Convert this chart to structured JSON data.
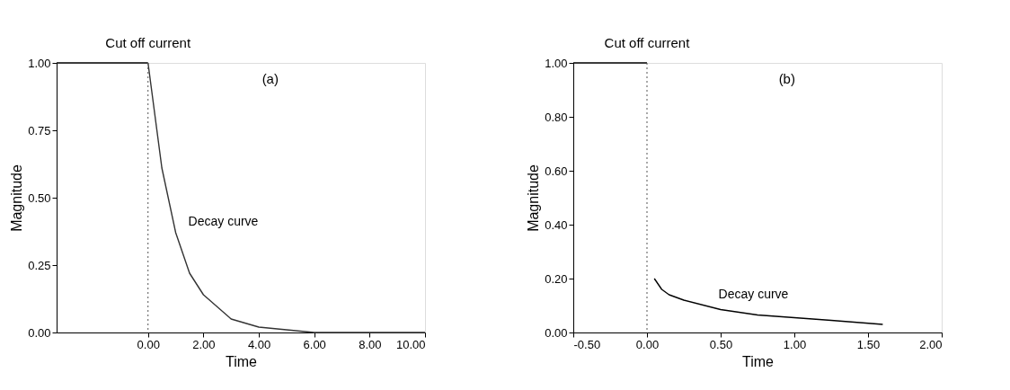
{
  "chart_data": [
    {
      "type": "line",
      "xlabel": "Time",
      "ylabel": "Magnitude",
      "xlim": [
        -3.3,
        10
      ],
      "ylim": [
        0,
        1
      ],
      "xticks": [
        {
          "value": 0,
          "label": "0.00"
        },
        {
          "value": 2,
          "label": "2.00"
        },
        {
          "value": 4,
          "label": "4.00"
        },
        {
          "value": 6,
          "label": "6.00"
        },
        {
          "value": 8,
          "label": "8.00"
        },
        {
          "value": 10,
          "label": "10.00"
        }
      ],
      "yticks": [
        {
          "value": 0,
          "label": "0.00"
        },
        {
          "value": 0.25,
          "label": "0.25"
        },
        {
          "value": 0.5,
          "label": "0.50"
        },
        {
          "value": 0.75,
          "label": "0.75"
        },
        {
          "value": 1,
          "label": "1.00"
        }
      ],
      "series": [
        {
          "color": "#000000",
          "x": [
            -3.3,
            0
          ],
          "values": [
            1,
            1
          ]
        },
        {
          "color": "#333333",
          "x": [
            0,
            0.5,
            1,
            1.5,
            2,
            3,
            4,
            5,
            6,
            8,
            10
          ],
          "values": [
            1,
            0.61,
            0.37,
            0.22,
            0.14,
            0.05,
            0.02,
            0.01,
            0,
            0,
            0
          ]
        }
      ],
      "ref_lines": [
        {
          "axis": "x",
          "value": 0,
          "line_style": "dotted"
        }
      ],
      "annotations": [
        "(a)",
        {
          "text": "Cut off current",
          "x": 0,
          "y": 1
        },
        {
          "text": "Decay curve",
          "x": 1,
          "y": 0.37
        }
      ],
      "grid": false,
      "marker": "none",
      "line_style": "solid"
    },
    {
      "type": "line",
      "xlabel": "Time",
      "ylabel": "Magnitude",
      "xlim": [
        -0.5,
        2
      ],
      "ylim": [
        0,
        1
      ],
      "xticks": [
        {
          "value": -0.5,
          "label": "-0.50"
        },
        {
          "value": 0,
          "label": "0.00"
        },
        {
          "value": 0.5,
          "label": "0.50"
        },
        {
          "value": 1,
          "label": "1.00"
        },
        {
          "value": 1.5,
          "label": "1.50"
        },
        {
          "value": 2,
          "label": "2.00"
        }
      ],
      "yticks": [
        {
          "value": 0,
          "label": "0.00"
        },
        {
          "value": 0.2,
          "label": "0.20"
        },
        {
          "value": 0.4,
          "label": "0.40"
        },
        {
          "value": 0.6,
          "label": "0.60"
        },
        {
          "value": 0.8,
          "label": "0.80"
        },
        {
          "value": 1,
          "label": "1.00"
        }
      ],
      "series": [
        {
          "color": "#000000",
          "x": [
            -0.5,
            0
          ],
          "values": [
            1,
            1
          ]
        },
        {
          "color": "#000000",
          "x": [
            0.05,
            0.1,
            0.15,
            0.25,
            0.5,
            0.75,
            1,
            1.25,
            1.6
          ],
          "values": [
            0.2,
            0.16,
            0.14,
            0.12,
            0.085,
            0.065,
            0.055,
            0.045,
            0.03
          ]
        }
      ],
      "ref_lines": [
        {
          "axis": "x",
          "value": 0,
          "line_style": "dotted"
        }
      ],
      "annotations": [
        "(b)",
        {
          "text": "Cut off current",
          "x": 0,
          "y": 1
        },
        {
          "text": "Decay curve",
          "x": 0.4,
          "y": 0.1
        }
      ],
      "grid": false,
      "marker": "none",
      "line_style": "solid"
    }
  ]
}
